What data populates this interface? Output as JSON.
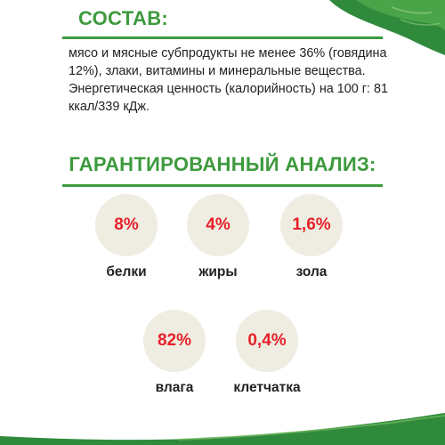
{
  "composition": {
    "title": "СОСТАВ:",
    "text": "мясо и мясные субпродукты не менее 36% (говядина 12%), злаки, витамины и минеральные вещества. Энергетическая ценность (калорийность) на 100 г: 81 ккал/339 кДж."
  },
  "analysis": {
    "title": "ГАРАНТИРОВАННЫЙ АНАЛИЗ:",
    "items": [
      {
        "value": "8%",
        "label": "белки"
      },
      {
        "value": "4%",
        "label": "жиры"
      },
      {
        "value": "1,6%",
        "label": "зола"
      },
      {
        "value": "82%",
        "label": "влага"
      },
      {
        "value": "0,4%",
        "label": "клетчатка"
      }
    ]
  },
  "colors": {
    "accent_green": "#3d9a3d",
    "value_red": "#e8202a",
    "circle_beige": "#efede1"
  }
}
